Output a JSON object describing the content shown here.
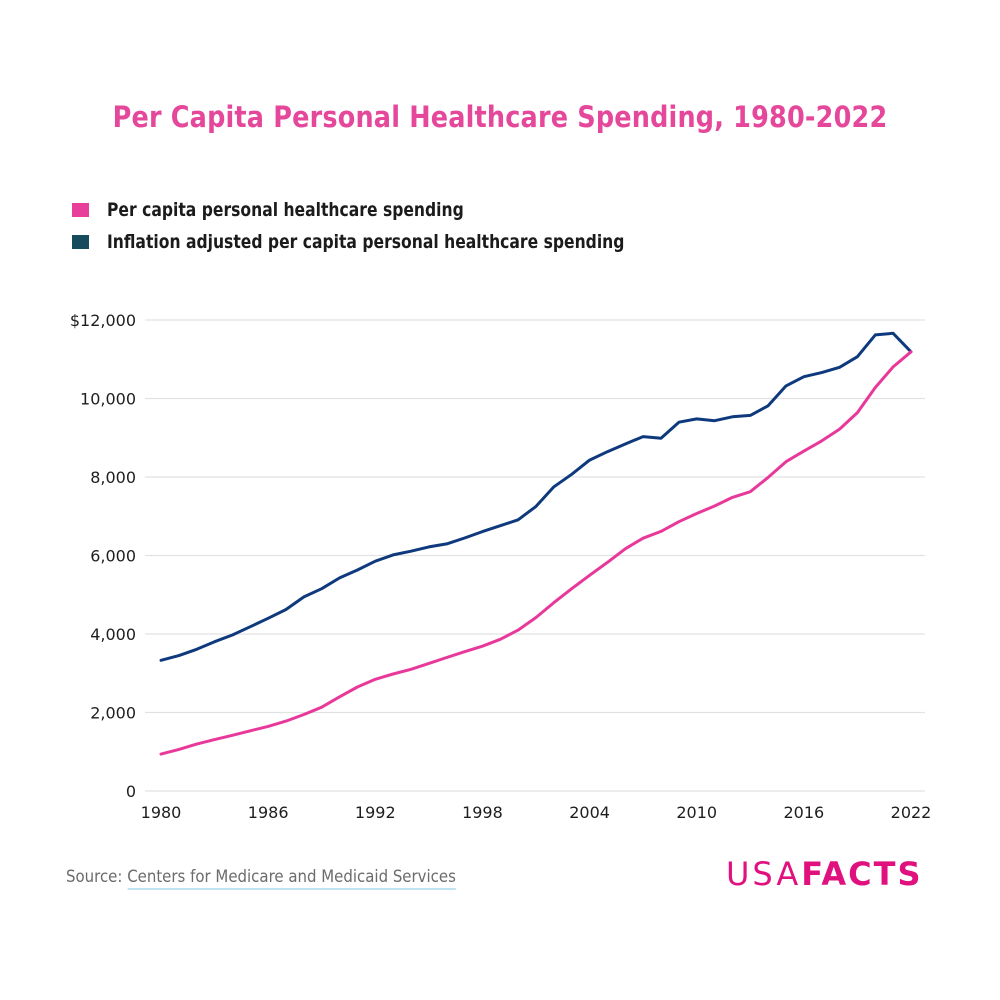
{
  "colors": {
    "accent": "#E5489B",
    "series_nominal": "#E8399A",
    "series_real_line": "#0E3A7D",
    "series_real_swatch": "#164B5E",
    "grid": "#e2e2e2",
    "logo": "#E0117F"
  },
  "title": "Per Capita Personal Healthcare Spending, 1980-2022",
  "legend": [
    {
      "label": "Per capita personal healthcare spending",
      "color": "#E8409A"
    },
    {
      "label": "Inflation adjusted per capita personal healthcare spending",
      "color": "#164B5E"
    }
  ],
  "footer": {
    "source_prefix": "Source: ",
    "source_link": "Centers for Medicare and Medicaid Services",
    "logo_light": "USA",
    "logo_bold": "FACTS"
  },
  "chart_data": {
    "type": "line",
    "title": "Per Capita Personal Healthcare Spending, 1980-2022",
    "xlabel": "",
    "ylabel": "",
    "xlim": [
      1980,
      2022
    ],
    "ylim": [
      0,
      12000
    ],
    "grid": true,
    "legend_position": "top-left",
    "x_ticks": [
      1980,
      1986,
      1992,
      1998,
      2004,
      2010,
      2016,
      2022
    ],
    "x_tick_labels": [
      "1980",
      "1986",
      "1992",
      "1998",
      "2004",
      "2010",
      "2016",
      "2022"
    ],
    "y_ticks": [
      0,
      2000,
      4000,
      6000,
      8000,
      10000,
      12000
    ],
    "y_tick_labels": [
      "0",
      "2,000",
      "4,000",
      "6,000",
      "8,000",
      "10,000",
      "$12,000"
    ],
    "x": [
      1980,
      1981,
      1982,
      1983,
      1984,
      1985,
      1986,
      1987,
      1988,
      1989,
      1990,
      1991,
      1992,
      1993,
      1994,
      1995,
      1996,
      1997,
      1998,
      1999,
      2000,
      2001,
      2002,
      2003,
      2004,
      2005,
      2006,
      2007,
      2008,
      2009,
      2010,
      2011,
      2012,
      2013,
      2014,
      2015,
      2016,
      2017,
      2018,
      2019,
      2020,
      2021,
      2022
    ],
    "series": [
      {
        "name": "Per capita personal healthcare spending",
        "color": "#E8399A",
        "values": [
          940,
          1060,
          1195,
          1310,
          1420,
          1535,
          1645,
          1780,
          1950,
          2135,
          2400,
          2650,
          2845,
          2980,
          3100,
          3250,
          3400,
          3550,
          3690,
          3865,
          4100,
          4420,
          4800,
          5155,
          5495,
          5825,
          6170,
          6440,
          6615,
          6860,
          7070,
          7260,
          7480,
          7625,
          7990,
          8390,
          8660,
          8920,
          9220,
          9640,
          10280,
          10805,
          11190
        ]
      },
      {
        "name": "Inflation adjusted per capita personal healthcare spending",
        "color": "#0E3A7D",
        "values": [
          3330,
          3450,
          3610,
          3805,
          3975,
          4185,
          4400,
          4625,
          4945,
          5155,
          5430,
          5630,
          5855,
          6015,
          6110,
          6220,
          6295,
          6445,
          6610,
          6760,
          6910,
          7250,
          7750,
          8070,
          8430,
          8645,
          8840,
          9030,
          8985,
          9395,
          9480,
          9435,
          9535,
          9570,
          9815,
          10320,
          10555,
          10660,
          10795,
          11065,
          11620,
          11660,
          11190
        ]
      }
    ]
  }
}
